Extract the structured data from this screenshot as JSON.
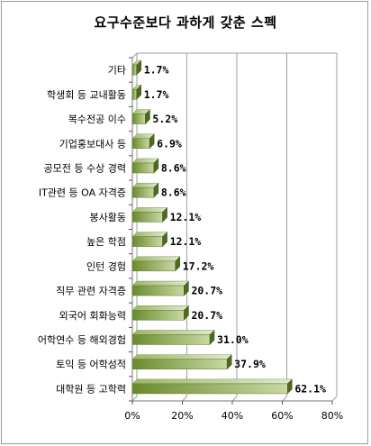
{
  "chart_data": {
    "type": "bar",
    "orientation": "horizontal",
    "title": "요구수준보다 과하게 갖춘 스펙",
    "categories": [
      "기타",
      "학생회 등 교내활동",
      "복수전공 이수",
      "기업홍보대사 등",
      "공모전 등 수상 경력",
      "IT관련 등 OA 자격증",
      "봉사활동",
      "높은 학점",
      "인턴 경험",
      "직무 관련 자격증",
      "외국어 회화능력",
      "어학연수 등 해외경험",
      "토익 등 어학성적",
      "대학원 등 고학력"
    ],
    "values": [
      1.7,
      1.7,
      5.2,
      6.9,
      8.6,
      8.6,
      12.1,
      12.1,
      17.2,
      20.7,
      20.7,
      31.0,
      37.9,
      62.1
    ],
    "value_labels": [
      "1.7%",
      "1.7%",
      "5.2%",
      "6.9%",
      "8.6%",
      "8.6%",
      "12.1%",
      "12.1%",
      "17.2%",
      "20.7%",
      "20.7%",
      "31.0%",
      "37.9%",
      "62.1%"
    ],
    "xticks": [
      "0%",
      "20%",
      "40%",
      "60%",
      "80%"
    ],
    "xlim": [
      0,
      80
    ],
    "grid": true,
    "bar_color_light": "#c8d9a3",
    "bar_color_dark": "#6a8a2e",
    "grid_color": "#9e9e9e"
  }
}
